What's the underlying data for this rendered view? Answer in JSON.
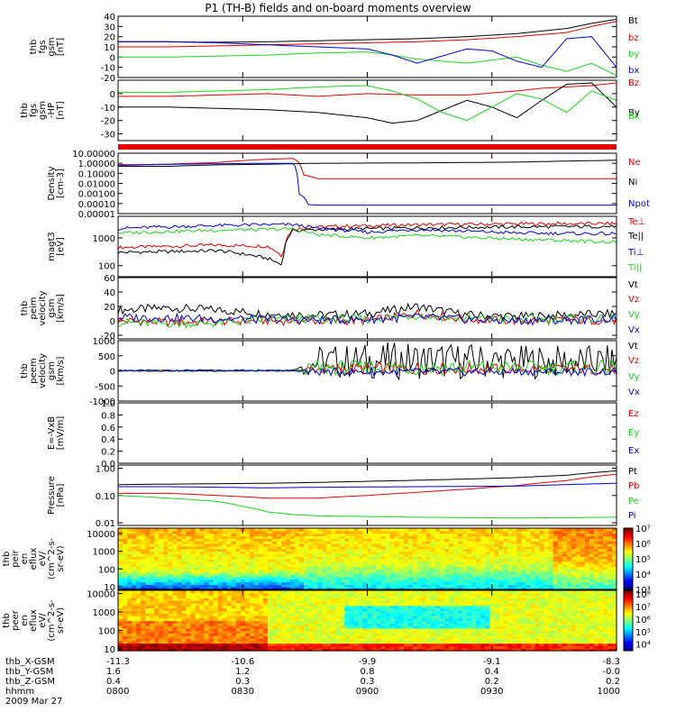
{
  "title": "P1 (TH-B) fields and on-board moments overview",
  "colors": {
    "black": "#000000",
    "red": "#e00000",
    "green": "#1ed21e",
    "blue": "#0000d0",
    "frame": "#000000"
  },
  "chart_data": [
    {
      "type": "line",
      "panel": "fgs_gsm",
      "ylabel": [
        "thb",
        "fgs",
        "gsm",
        "[nT]"
      ],
      "ylim": [
        -20,
        40
      ],
      "ytick_values": [
        -20,
        -10,
        0,
        10,
        20,
        30,
        40
      ],
      "ytick_labels": [
        "-20",
        "-10",
        "0",
        "10",
        "20",
        "30",
        "40"
      ],
      "series": [
        {
          "name": "Bt",
          "color": "black",
          "x": [
            0,
            0.1,
            0.2,
            0.3,
            0.4,
            0.5,
            0.6,
            0.7,
            0.8,
            0.9,
            0.95,
            1.0
          ],
          "y": [
            15,
            15,
            14.5,
            15,
            16,
            17,
            18,
            20,
            23,
            28,
            33,
            37
          ]
        },
        {
          "name": "bz",
          "color": "red",
          "x": [
            0,
            0.1,
            0.2,
            0.3,
            0.4,
            0.5,
            0.6,
            0.7,
            0.8,
            0.9,
            0.95,
            1.0
          ],
          "y": [
            10,
            10,
            11,
            12,
            13,
            14,
            15,
            17,
            20,
            24,
            30,
            35
          ]
        },
        {
          "name": "by",
          "color": "green",
          "x": [
            0,
            0.1,
            0.2,
            0.3,
            0.4,
            0.5,
            0.55,
            0.6,
            0.7,
            0.8,
            0.85,
            0.9,
            0.95,
            1.0
          ],
          "y": [
            0,
            0,
            1,
            2,
            4,
            5,
            2,
            -2,
            -6,
            0,
            -8,
            -14,
            -6,
            -18
          ]
        },
        {
          "name": "bx",
          "color": "blue",
          "x": [
            0,
            0.1,
            0.2,
            0.3,
            0.4,
            0.5,
            0.55,
            0.6,
            0.7,
            0.75,
            0.8,
            0.85,
            0.9,
            0.95,
            1.0
          ],
          "y": [
            15,
            15,
            14,
            12,
            10,
            8,
            2,
            -6,
            8,
            6,
            -4,
            -10,
            18,
            20,
            -10
          ]
        }
      ]
    },
    {
      "type": "line",
      "panel": "fgs_gsm_hp",
      "ylabel": [
        "thb",
        "fgs",
        "gsm",
        "-HP",
        "[nT]"
      ],
      "ylim": [
        -35,
        10
      ],
      "ytick_values": [
        -30,
        -20,
        -10,
        0
      ],
      "ytick_labels": [
        "-30",
        "-20",
        "-10",
        "0"
      ],
      "series": [
        {
          "name": "Bz",
          "color": "red",
          "x": [
            0,
            0.1,
            0.2,
            0.3,
            0.4,
            0.5,
            0.6,
            0.7,
            0.8,
            0.85,
            0.9,
            0.95,
            1.0
          ],
          "y": [
            -2,
            -2,
            -1,
            0,
            -2,
            0,
            -1,
            -1,
            2,
            4,
            5,
            6,
            8
          ]
        },
        {
          "name": "By",
          "color": "black",
          "x": [
            0,
            0.1,
            0.2,
            0.3,
            0.4,
            0.5,
            0.55,
            0.6,
            0.7,
            0.75,
            0.8,
            0.85,
            0.9,
            0.95,
            1.0
          ],
          "y": [
            -10,
            -10,
            -11,
            -12,
            -14,
            -18,
            -22,
            -20,
            -5,
            -10,
            -18,
            -5,
            7,
            8,
            -10
          ]
        },
        {
          "name": "Bx",
          "color": "green",
          "x": [
            0,
            0.1,
            0.2,
            0.3,
            0.4,
            0.5,
            0.55,
            0.6,
            0.65,
            0.7,
            0.8,
            0.85,
            0.9,
            0.95,
            1.0
          ],
          "y": [
            1,
            1,
            2,
            3,
            5,
            6,
            2,
            -4,
            -14,
            -20,
            0,
            -4,
            -14,
            2,
            -5
          ]
        }
      ]
    },
    {
      "type": "line",
      "panel": "density",
      "yscale": "log",
      "ylabel": [
        "Density",
        "[cm-3]"
      ],
      "ylim": [
        1e-05,
        10
      ],
      "ytick_values": [
        1e-05,
        0.0001,
        0.001,
        0.01,
        0.1,
        1,
        10
      ],
      "ytick_labels": [
        "0.00001",
        "0.00010",
        "0.00100",
        "0.01000",
        "0.10000",
        "1.00000",
        "10.00000"
      ],
      "series": [
        {
          "name": "Ne",
          "color": "red",
          "x": [
            0,
            0.1,
            0.2,
            0.3,
            0.35,
            0.37,
            0.4,
            0.6,
            0.8,
            1.0
          ],
          "y": [
            0.6,
            0.8,
            1.2,
            2.5,
            3.0,
            0.07,
            0.03,
            0.03,
            0.03,
            0.03
          ]
        },
        {
          "name": "Ni",
          "color": "black",
          "x": [
            0,
            0.1,
            0.2,
            0.3,
            0.35,
            0.4,
            0.6,
            0.8,
            1.0
          ],
          "y": [
            0.5,
            0.5,
            0.7,
            0.8,
            0.9,
            1.0,
            1.1,
            1.3,
            2.0
          ]
        },
        {
          "name": "Npot",
          "color": "blue",
          "x": [
            0,
            0.1,
            0.2,
            0.3,
            0.35,
            0.36,
            0.38,
            0.4,
            0.6,
            0.8,
            1.0
          ],
          "y": [
            0.7,
            0.8,
            0.9,
            1.0,
            1.0,
            0.001,
            8e-05,
            7e-05,
            7e-05,
            7e-05,
            7e-05
          ]
        }
      ]
    },
    {
      "type": "line",
      "panel": "temperature",
      "yscale": "log",
      "ylabel": [
        "magt3",
        "[eV]"
      ],
      "ylim": [
        40,
        6000
      ],
      "ytick_values": [
        100,
        1000
      ],
      "ytick_labels": [
        "100",
        "1000"
      ],
      "series": [
        {
          "name": "Te⊥",
          "color": "red",
          "x": [
            0,
            0.1,
            0.2,
            0.3,
            0.33,
            0.35,
            0.4,
            0.6,
            0.8,
            1.0
          ],
          "y": [
            450,
            500,
            550,
            500,
            200,
            2000,
            2500,
            3000,
            3200,
            3300
          ]
        },
        {
          "name": "Te||",
          "color": "black",
          "x": [
            0,
            0.1,
            0.2,
            0.3,
            0.33,
            0.35,
            0.4,
            0.6,
            0.8,
            1.0
          ],
          "y": [
            300,
            320,
            350,
            180,
            100,
            1800,
            2000,
            2300,
            2500,
            2600
          ]
        },
        {
          "name": "Ti⊥",
          "color": "blue",
          "x": [
            0,
            0.1,
            0.2,
            0.3,
            0.35,
            0.4,
            0.5,
            0.6,
            0.8,
            1.0
          ],
          "y": [
            2200,
            2500,
            2800,
            3000,
            3000,
            2200,
            1600,
            2000,
            1500,
            1400
          ]
        },
        {
          "name": "Ti||",
          "color": "green",
          "x": [
            0,
            0.1,
            0.2,
            0.3,
            0.35,
            0.4,
            0.5,
            0.6,
            0.8,
            1.0
          ],
          "y": [
            1500,
            1700,
            1900,
            2000,
            2100,
            1300,
            1000,
            1200,
            900,
            700
          ]
        }
      ]
    },
    {
      "type": "line",
      "panel": "peim_velocity",
      "ylabel": [
        "thb",
        "peim",
        "velocity",
        "gsm",
        "[km/s]"
      ],
      "ylim": [
        -25,
        60
      ],
      "ytick_values": [
        -20,
        0,
        20,
        40,
        60
      ],
      "ytick_labels": [
        "-20",
        "0",
        "20",
        "40",
        "60"
      ],
      "series": [
        {
          "name": "Vt",
          "color": "black",
          "x": [
            0,
            0.1,
            0.2,
            0.3,
            0.4,
            0.5,
            0.6,
            0.7,
            0.8,
            0.9,
            1.0
          ],
          "y": [
            15,
            18,
            15,
            10,
            8,
            10,
            20,
            8,
            6,
            8,
            10
          ]
        },
        {
          "name": "Vz",
          "color": "red",
          "x": [
            0,
            0.1,
            0.2,
            0.3,
            0.4,
            0.5,
            0.6,
            0.7,
            0.8,
            0.9,
            1.0
          ],
          "y": [
            0,
            -2,
            -1,
            0,
            0,
            0,
            10,
            2,
            0,
            1,
            0
          ]
        },
        {
          "name": "Vy",
          "color": "green",
          "x": [
            0,
            0.1,
            0.2,
            0.3,
            0.4,
            0.5,
            0.6,
            0.7,
            0.8,
            0.9,
            1.0
          ],
          "y": [
            -2,
            -4,
            -3,
            2,
            3,
            2,
            8,
            3,
            2,
            3,
            2
          ]
        },
        {
          "name": "Vx",
          "color": "blue",
          "x": [
            0,
            0.1,
            0.2,
            0.3,
            0.4,
            0.5,
            0.6,
            0.7,
            0.8,
            0.9,
            1.0
          ],
          "y": [
            5,
            4,
            3,
            2,
            1,
            2,
            5,
            2,
            0,
            1,
            3
          ]
        }
      ]
    },
    {
      "type": "line",
      "panel": "peem_velocity",
      "ylabel": [
        "thb",
        "peem",
        "velocity",
        "gsm",
        "[km/s]"
      ],
      "ylim": [
        -1000,
        1000
      ],
      "ytick_values": [
        -1000,
        -500,
        0,
        500,
        1000
      ],
      "ytick_labels": [
        "-1000",
        "-500",
        "0",
        "500",
        "1000"
      ],
      "series": [
        {
          "name": "Vt",
          "color": "black",
          "x": [
            0,
            0.2,
            0.35,
            0.4,
            0.6,
            0.8,
            1.0
          ],
          "y": [
            20,
            20,
            30,
            300,
            350,
            300,
            300
          ]
        },
        {
          "name": "Vz",
          "color": "red",
          "x": [
            0,
            0.2,
            0.35,
            0.4,
            0.6,
            0.8,
            1.0
          ],
          "y": [
            0,
            0,
            0,
            60,
            80,
            60,
            60
          ]
        },
        {
          "name": "Vy",
          "color": "green",
          "x": [
            0,
            0.2,
            0.35,
            0.4,
            0.6,
            0.8,
            1.0
          ],
          "y": [
            0,
            0,
            0,
            100,
            120,
            100,
            100
          ]
        },
        {
          "name": "Vx",
          "color": "blue",
          "x": [
            0,
            0.2,
            0.35,
            0.4,
            0.6,
            0.8,
            1.0
          ],
          "y": [
            0,
            0,
            0,
            -30,
            -40,
            -30,
            -30
          ]
        }
      ]
    },
    {
      "type": "line",
      "panel": "e_vxb",
      "ylabel": [
        "E=-VxB",
        "[mV/m]"
      ],
      "ylim": [
        0,
        1
      ],
      "ytick_values": [
        0,
        0.2,
        0.4,
        0.6,
        0.8,
        1.0
      ],
      "ytick_labels": [
        "0.0",
        "0.2",
        "0.4",
        "0.6",
        "0.8",
        "1.0"
      ],
      "series": [
        {
          "name": "Ez",
          "color": "red",
          "x": [],
          "y": []
        },
        {
          "name": "Ey",
          "color": "green",
          "x": [],
          "y": []
        },
        {
          "name": "Ex",
          "color": "blue",
          "x": [],
          "y": []
        }
      ]
    },
    {
      "type": "line",
      "panel": "pressure",
      "yscale": "log",
      "ylabel": [
        "Pressure",
        "[nPa]"
      ],
      "ylim": [
        0.008,
        1.3
      ],
      "ytick_values": [
        0.01,
        0.1,
        1.0
      ],
      "ytick_labels": [
        "0.01",
        "0.10",
        "1.00"
      ],
      "series": [
        {
          "name": "Pt",
          "color": "black",
          "x": [
            0,
            0.1,
            0.2,
            0.3,
            0.4,
            0.5,
            0.6,
            0.7,
            0.8,
            0.9,
            1.0
          ],
          "y": [
            0.25,
            0.26,
            0.27,
            0.28,
            0.3,
            0.33,
            0.36,
            0.4,
            0.45,
            0.55,
            0.8
          ]
        },
        {
          "name": "Pb",
          "color": "red",
          "x": [
            0,
            0.1,
            0.2,
            0.3,
            0.4,
            0.5,
            0.6,
            0.7,
            0.8,
            0.9,
            1.0
          ],
          "y": [
            0.12,
            0.12,
            0.1,
            0.08,
            0.08,
            0.1,
            0.13,
            0.17,
            0.23,
            0.35,
            0.6
          ]
        },
        {
          "name": "Pe",
          "color": "green",
          "x": [
            0,
            0.1,
            0.2,
            0.25,
            0.3,
            0.35,
            0.4,
            0.6,
            0.8,
            1.0
          ],
          "y": [
            0.1,
            0.08,
            0.06,
            0.04,
            0.025,
            0.02,
            0.018,
            0.016,
            0.015,
            0.016
          ]
        },
        {
          "name": "Pi",
          "color": "blue",
          "x": [
            0,
            0.1,
            0.2,
            0.3,
            0.4,
            0.6,
            0.8,
            0.9,
            1.0
          ],
          "y": [
            0.21,
            0.21,
            0.2,
            0.19,
            0.2,
            0.21,
            0.22,
            0.25,
            0.28
          ]
        }
      ]
    },
    {
      "type": "heatmap",
      "panel": "peir_eflux",
      "ylabel": [
        "thb",
        "peir",
        "en",
        "eflux",
        "eV/",
        "(cm^2-s-",
        "sr-eV)"
      ],
      "yscale": "log",
      "ylim": [
        7,
        20000
      ],
      "ytick_values": [
        10,
        100,
        1000,
        10000
      ],
      "ytick_labels": [
        "10",
        "100",
        "1000",
        "10000"
      ],
      "colorbar": {
        "scale": "log",
        "range": [
          1000,
          10000000
        ],
        "tick_values": [
          1000,
          10000,
          100000,
          1000000,
          10000000
        ],
        "tick_labels": [
          "10³",
          "10⁴",
          "10⁵",
          "10⁶",
          "10⁷"
        ]
      }
    },
    {
      "type": "heatmap",
      "panel": "peer_eflux",
      "ylabel": [
        "thb",
        "peer",
        "en",
        "eflux",
        "eV/",
        "(cm^2-s-",
        "sr-eV)"
      ],
      "yscale": "log",
      "ylim": [
        8,
        15000
      ],
      "ytick_values": [
        10,
        100,
        1000,
        10000
      ],
      "ytick_labels": [
        "10",
        "100",
        "1000",
        "10000"
      ],
      "colorbar": {
        "scale": "log",
        "range": [
          3000,
          200000000
        ],
        "tick_values": [
          10000,
          100000,
          1000000,
          10000000,
          100000000
        ],
        "tick_labels": [
          "10⁴",
          "10⁵",
          "10⁶",
          "10⁷",
          "10⁸"
        ]
      }
    }
  ],
  "orbit_table": {
    "rows": [
      {
        "label": "thb_X-GSM",
        "values": [
          "-11.3",
          "-10.6",
          "-9.9",
          "-9.1",
          "-8.3"
        ]
      },
      {
        "label": "thb_Y-GSM",
        "values": [
          "1.6",
          "1.2",
          "0.8",
          "0.4",
          "-0.0"
        ]
      },
      {
        "label": "thb_Z-GSM",
        "values": [
          "0.4",
          "0.3",
          "0.3",
          "0.2",
          "0.2"
        ]
      },
      {
        "label": "hhmm",
        "values": [
          "0800",
          "0830",
          "0900",
          "0930",
          "1000"
        ]
      }
    ],
    "date": "2009 Mar 27"
  }
}
